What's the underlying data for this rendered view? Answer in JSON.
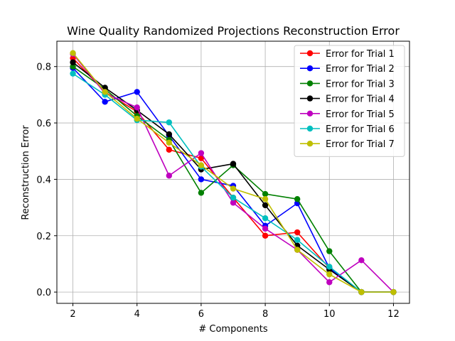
{
  "chart_data": {
    "type": "line",
    "title": "Wine Quality  Randomized Projections Reconstruction Error",
    "xlabel": "# Components",
    "ylabel": "Reconstruction Error",
    "xlim": [
      1.5,
      12.5
    ],
    "ylim": [
      -0.04,
      0.89
    ],
    "xticks": [
      2,
      4,
      6,
      8,
      10,
      12
    ],
    "yticks": [
      0.0,
      0.2,
      0.4,
      0.6,
      0.8
    ],
    "ytick_labels": [
      "0.0",
      "0.2",
      "0.4",
      "0.6",
      "0.8"
    ],
    "grid": true,
    "legend_position": "top-right",
    "x": [
      2,
      3,
      4,
      5,
      6,
      7,
      8,
      9,
      10,
      11,
      12
    ],
    "series": [
      {
        "name": "Error for Trial 1",
        "color": "#ff0000",
        "values": [
          0.83,
          0.71,
          0.64,
          0.505,
          0.475,
          0.335,
          0.2,
          0.212,
          0.085,
          0.0,
          0.0
        ]
      },
      {
        "name": "Error for Trial 2",
        "color": "#0000ff",
        "values": [
          0.795,
          0.675,
          0.71,
          0.555,
          0.4,
          0.377,
          0.235,
          0.315,
          0.085,
          0.0,
          0.0
        ]
      },
      {
        "name": "Error for Trial 3",
        "color": "#008000",
        "values": [
          0.8,
          0.72,
          0.625,
          0.54,
          0.352,
          0.45,
          0.348,
          0.33,
          0.145,
          0.0,
          0.0
        ]
      },
      {
        "name": "Error for Trial 4",
        "color": "#000000",
        "values": [
          0.815,
          0.725,
          0.645,
          0.56,
          0.435,
          0.455,
          0.308,
          0.165,
          0.08,
          0.0,
          0.0
        ]
      },
      {
        "name": "Error for Trial 5",
        "color": "#bf00bf",
        "values": [
          0.845,
          0.705,
          0.655,
          0.413,
          0.493,
          0.317,
          0.225,
          0.15,
          0.035,
          0.113,
          0.0
        ]
      },
      {
        "name": "Error for Trial 6",
        "color": "#00bfbf",
        "values": [
          0.775,
          0.7,
          0.61,
          0.602,
          0.445,
          0.335,
          0.262,
          0.185,
          0.09,
          0.0,
          0.0
        ]
      },
      {
        "name": "Error for Trial 7",
        "color": "#bfbf00",
        "values": [
          0.848,
          0.71,
          0.615,
          0.53,
          0.45,
          0.367,
          0.33,
          0.15,
          0.063,
          0.0,
          0.0
        ]
      }
    ]
  }
}
